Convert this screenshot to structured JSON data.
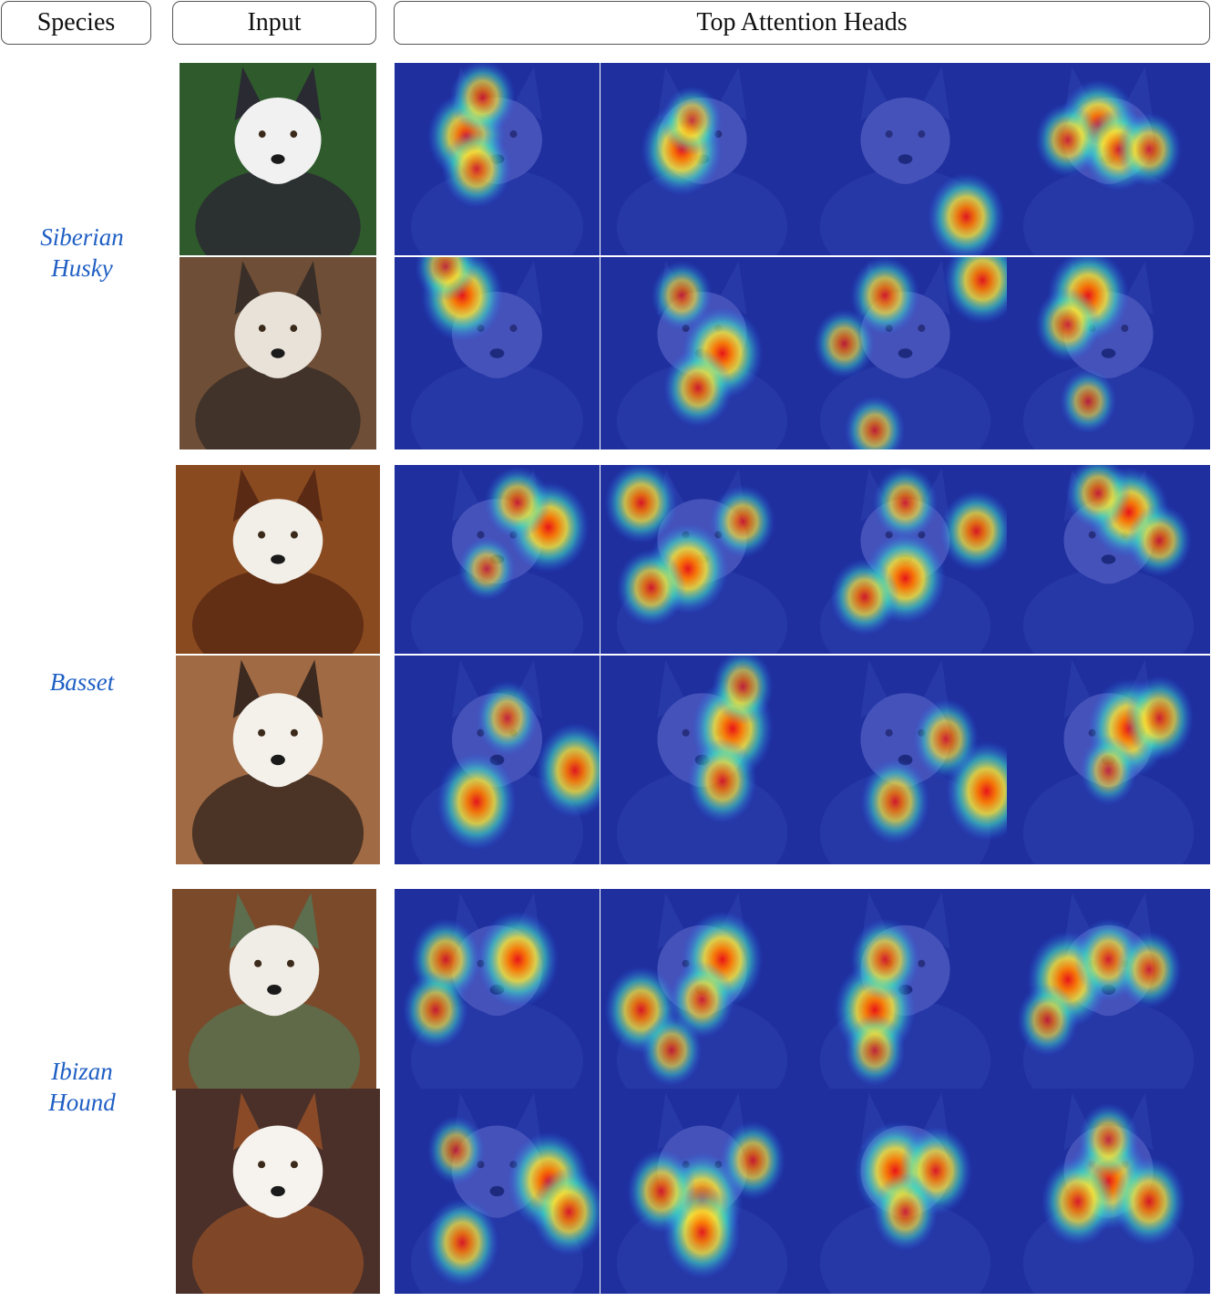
{
  "headers": {
    "species": "Species",
    "input": "Input",
    "heads": "Top Attention Heads"
  },
  "groups": [
    {
      "label_lines": [
        "Siberian",
        "Husky"
      ],
      "samples": [
        {
          "photo_colors": [
            "#2e5a2c",
            "#f1f1f1",
            "#2a2a32"
          ],
          "heads": [
            [
              [
                0.35,
                0.38,
                0.9
              ],
              [
                0.43,
                0.18,
                0.6
              ],
              [
                0.4,
                0.55,
                0.7
              ]
            ],
            [
              [
                0.4,
                0.45,
                1.0
              ],
              [
                0.45,
                0.3,
                0.5
              ]
            ],
            [
              [
                0.8,
                0.8,
                0.9
              ]
            ],
            [
              [
                0.45,
                0.32,
                0.95
              ],
              [
                0.55,
                0.45,
                0.8
              ],
              [
                0.3,
                0.4,
                0.6
              ],
              [
                0.7,
                0.45,
                0.6
              ]
            ]
          ]
        },
        {
          "photo_colors": [
            "#6e4e36",
            "#e8e2d9",
            "#3a2f28"
          ],
          "heads": [
            [
              [
                0.33,
                0.2,
                1.0
              ],
              [
                0.25,
                0.05,
                0.5
              ]
            ],
            [
              [
                0.6,
                0.5,
                1.0
              ],
              [
                0.48,
                0.68,
                0.7
              ],
              [
                0.4,
                0.2,
                0.5
              ]
            ],
            [
              [
                0.88,
                0.12,
                0.9
              ],
              [
                0.4,
                0.2,
                0.7
              ],
              [
                0.2,
                0.45,
                0.5
              ],
              [
                0.35,
                0.9,
                0.5
              ]
            ],
            [
              [
                0.4,
                0.2,
                1.0
              ],
              [
                0.3,
                0.35,
                0.6
              ],
              [
                0.4,
                0.75,
                0.4
              ]
            ]
          ]
        }
      ]
    },
    {
      "label_lines": [
        "Basset"
      ],
      "samples": [
        {
          "photo_colors": [
            "#8a4a20",
            "#f2efe9",
            "#5a2a14"
          ],
          "heads": [
            [
              [
                0.75,
                0.33,
                1.0
              ],
              [
                0.6,
                0.2,
                0.6
              ],
              [
                0.45,
                0.55,
                0.4
              ]
            ],
            [
              [
                0.43,
                0.55,
                1.0
              ],
              [
                0.2,
                0.2,
                0.8
              ],
              [
                0.25,
                0.65,
                0.7
              ],
              [
                0.7,
                0.3,
                0.6
              ]
            ],
            [
              [
                0.5,
                0.6,
                1.0
              ],
              [
                0.85,
                0.35,
                0.8
              ],
              [
                0.3,
                0.7,
                0.7
              ],
              [
                0.5,
                0.2,
                0.6
              ]
            ],
            [
              [
                0.6,
                0.25,
                1.0
              ],
              [
                0.45,
                0.15,
                0.6
              ],
              [
                0.75,
                0.4,
                0.6
              ]
            ]
          ]
        },
        {
          "photo_colors": [
            "#a06a44",
            "#f4f0ea",
            "#3c2a20"
          ],
          "heads": [
            [
              [
                0.4,
                0.7,
                0.95
              ],
              [
                0.88,
                0.55,
                0.9
              ],
              [
                0.55,
                0.3,
                0.5
              ]
            ],
            [
              [
                0.65,
                0.35,
                1.0
              ],
              [
                0.6,
                0.6,
                0.7
              ],
              [
                0.7,
                0.15,
                0.5
              ]
            ],
            [
              [
                0.9,
                0.65,
                1.0
              ],
              [
                0.45,
                0.7,
                0.7
              ],
              [
                0.7,
                0.4,
                0.6
              ]
            ],
            [
              [
                0.6,
                0.35,
                1.0
              ],
              [
                0.75,
                0.3,
                0.7
              ],
              [
                0.5,
                0.55,
                0.4
              ]
            ]
          ]
        }
      ]
    },
    {
      "label_lines": [
        "Ibizan",
        "Hound"
      ],
      "samples": [
        {
          "photo_colors": [
            "#7a4a2a",
            "#f0ece6",
            "#5c6e4e"
          ],
          "heads": [
            [
              [
                0.6,
                0.35,
                1.0
              ],
              [
                0.25,
                0.35,
                0.7
              ],
              [
                0.2,
                0.6,
                0.6
              ]
            ],
            [
              [
                0.6,
                0.35,
                1.0
              ],
              [
                0.2,
                0.6,
                0.8
              ],
              [
                0.5,
                0.55,
                0.6
              ],
              [
                0.35,
                0.8,
                0.5
              ]
            ],
            [
              [
                0.35,
                0.6,
                1.0
              ],
              [
                0.4,
                0.35,
                0.7
              ],
              [
                0.35,
                0.8,
                0.5
              ]
            ],
            [
              [
                0.3,
                0.45,
                1.0
              ],
              [
                0.5,
                0.35,
                0.7
              ],
              [
                0.7,
                0.4,
                0.6
              ],
              [
                0.2,
                0.65,
                0.5
              ]
            ]
          ]
        },
        {
          "photo_colors": [
            "#4a3028",
            "#f6f3ef",
            "#8a4a28"
          ],
          "heads": [
            [
              [
                0.75,
                0.45,
                1.0
              ],
              [
                0.85,
                0.6,
                0.8
              ],
              [
                0.33,
                0.75,
                0.8
              ],
              [
                0.3,
                0.3,
                0.4
              ]
            ],
            [
              [
                0.5,
                0.55,
                1.0
              ],
              [
                0.5,
                0.7,
                0.9
              ],
              [
                0.3,
                0.5,
                0.7
              ],
              [
                0.75,
                0.35,
                0.6
              ]
            ],
            [
              [
                0.45,
                0.4,
                1.0
              ],
              [
                0.65,
                0.4,
                0.8
              ],
              [
                0.5,
                0.6,
                0.6
              ]
            ],
            [
              [
                0.5,
                0.45,
                1.0
              ],
              [
                0.35,
                0.55,
                0.8
              ],
              [
                0.7,
                0.55,
                0.8
              ],
              [
                0.5,
                0.25,
                0.5
              ]
            ]
          ]
        }
      ]
    }
  ]
}
